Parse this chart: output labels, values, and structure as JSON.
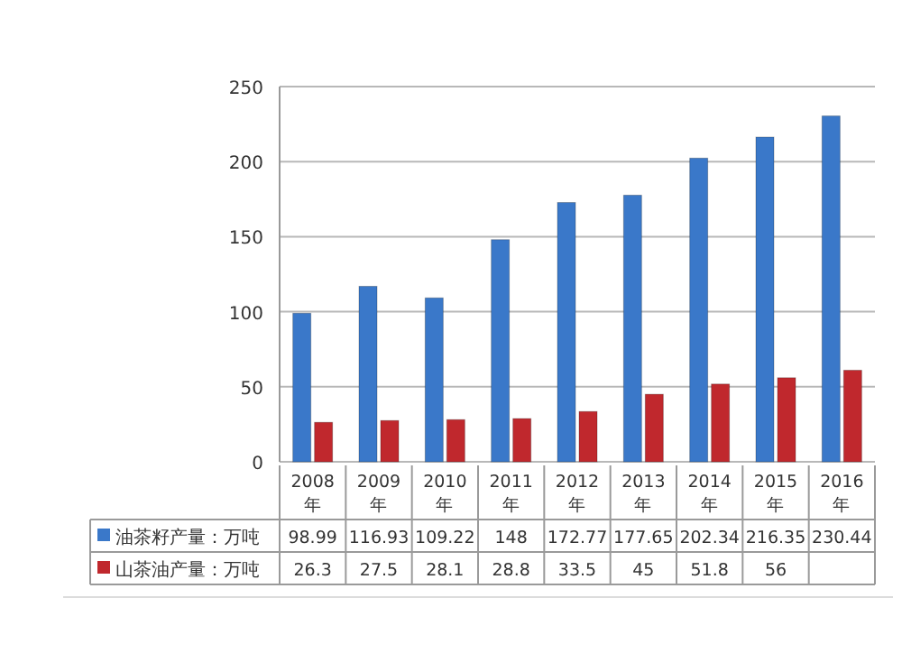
{
  "chart_data": {
    "type": "bar",
    "categories": [
      "2008年",
      "2009年",
      "2010年",
      "2011年",
      "2012年",
      "2013年",
      "2014年",
      "2015年",
      "2016年"
    ],
    "series": [
      {
        "name": "油茶籽产量：万吨",
        "color": "#3a78c9",
        "values": [
          98.99,
          116.93,
          109.22,
          148,
          172.77,
          177.65,
          202.34,
          216.35,
          230.44
        ],
        "value_labels": [
          "98.99",
          "116.93",
          "109.22",
          "148",
          "172.77",
          "177.65",
          "202.34",
          "216.35",
          "230.44"
        ]
      },
      {
        "name": "山茶油产量：万吨",
        "color": "#c0282d",
        "values": [
          26.3,
          27.5,
          28.1,
          28.8,
          33.5,
          45,
          51.8,
          56,
          61
        ],
        "value_labels": [
          "26.3",
          "27.5",
          "28.1",
          "28.8",
          "33.5",
          "45",
          "51.8",
          "56",
          null
        ]
      }
    ],
    "ylim": [
      0,
      250
    ],
    "yticks": [
      0,
      50,
      100,
      150,
      200,
      250
    ],
    "grid": "y",
    "legend": "bottom left"
  }
}
